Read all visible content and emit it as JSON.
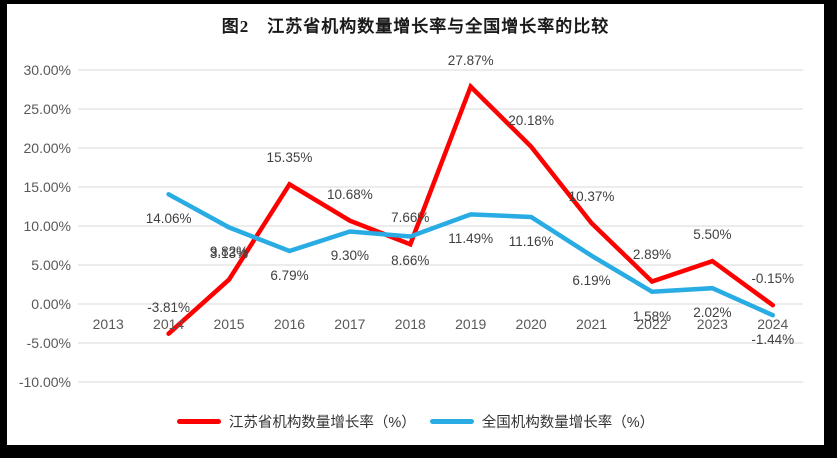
{
  "chart_data": {
    "type": "line",
    "title": "图2　江苏省机构数量增长率与全国增长率的比较",
    "categories": [
      "2013",
      "2014",
      "2015",
      "2016",
      "2017",
      "2018",
      "2019",
      "2020",
      "2021",
      "2022",
      "2023",
      "2024"
    ],
    "series": [
      {
        "name": "江苏省机构数量增长率（%）",
        "color": "#fe0000",
        "values": [
          null,
          -3.81,
          3.13,
          15.35,
          10.68,
          7.66,
          27.87,
          20.18,
          10.37,
          2.89,
          5.5,
          -0.15
        ],
        "labels": [
          "",
          "-3.81%",
          "3.13%",
          "15.35%",
          "10.68%",
          "7.66%",
          "27.87%",
          "20.18%",
          "10.37%",
          "2.89%",
          "5.50%",
          "-0.15%"
        ],
        "label_side": "above"
      },
      {
        "name": "全国机构数量增长率（%）",
        "color": "#29abe3",
        "values": [
          null,
          14.06,
          9.82,
          6.79,
          9.3,
          8.66,
          11.49,
          11.16,
          6.19,
          1.58,
          2.02,
          -1.44
        ],
        "labels": [
          "",
          "14.06%",
          "9.82%",
          "6.79%",
          "9.30%",
          "8.66%",
          "11.49%",
          "11.16%",
          "6.19%",
          "1.58%",
          "2.02%",
          "-1.44%"
        ],
        "label_side": "below"
      }
    ],
    "y_axis": {
      "min": -10,
      "max": 30,
      "step": 5,
      "tick_labels": [
        "30.00%",
        "25.00%",
        "20.00%",
        "15.00%",
        "10.00%",
        "5.00%",
        "0.00%",
        "-5.00%",
        "-10.00%"
      ]
    },
    "grid": true,
    "legend_position": "bottom"
  },
  "colors": {
    "gridline": "#d9d9d9",
    "axis_text": "#595959",
    "data_label": "#404040",
    "plot_background": "#ffffff",
    "frame_border": "#000000"
  }
}
